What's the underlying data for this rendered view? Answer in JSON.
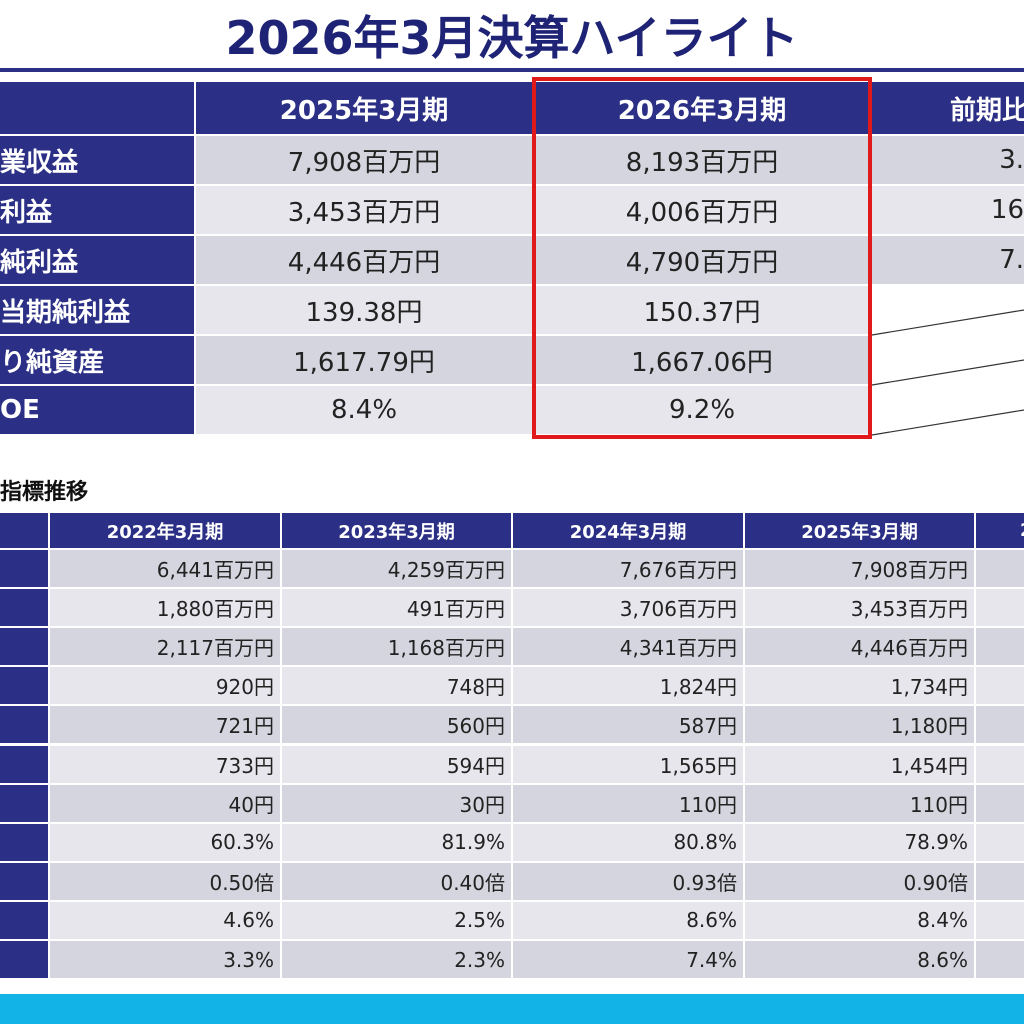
{
  "title": "2026年3月決算ハイライト",
  "highlight": {
    "headers": [
      "2025年3月期",
      "2026年3月期",
      "前期比"
    ],
    "rows": [
      {
        "label": "業収益",
        "values": [
          "7,908百万円",
          "8,193百万円",
          "3."
        ]
      },
      {
        "label": "利益",
        "values": [
          "3,453百万円",
          "4,006百万円",
          "16"
        ]
      },
      {
        "label": "純利益",
        "values": [
          "4,446百万円",
          "4,790百万円",
          "7."
        ]
      },
      {
        "label": "当期純利益",
        "values": [
          "139.38円",
          "150.37円"
        ]
      },
      {
        "label": "り純資産",
        "values": [
          "1,617.79円",
          "1,667.06円"
        ]
      },
      {
        "label": "OE",
        "values": [
          "8.4%",
          "9.2%"
        ]
      }
    ]
  },
  "trend": {
    "title": "指標推移",
    "headers": [
      "2022年3月期",
      "2023年3月期",
      "2024年3月期",
      "2025年3月期",
      "2"
    ],
    "rows": [
      [
        "6,441百万円",
        "4,259百万円",
        "7,676百万円",
        "7,908百万円"
      ],
      [
        "1,880百万円",
        "491百万円",
        "3,706百万円",
        "3,453百万円"
      ],
      [
        "2,117百万円",
        "1,168百万円",
        "4,341百万円",
        "4,446百万円"
      ],
      [
        "920円",
        "748円",
        "1,824円",
        "1,734円"
      ],
      [
        "721円",
        "560円",
        "587円",
        "1,180円"
      ],
      [
        "733円",
        "594円",
        "1,565円",
        "1,454円"
      ],
      [
        "40円",
        "30円",
        "110円",
        "110円"
      ],
      [
        "60.3%",
        "81.9%",
        "80.8%",
        "78.9%"
      ],
      [
        "0.50倍",
        "0.40倍",
        "0.93倍",
        "0.90倍"
      ],
      [
        "4.6%",
        "2.5%",
        "8.6%",
        "8.4%"
      ],
      [
        "3.3%",
        "2.3%",
        "7.4%",
        "8.6%"
      ]
    ]
  }
}
